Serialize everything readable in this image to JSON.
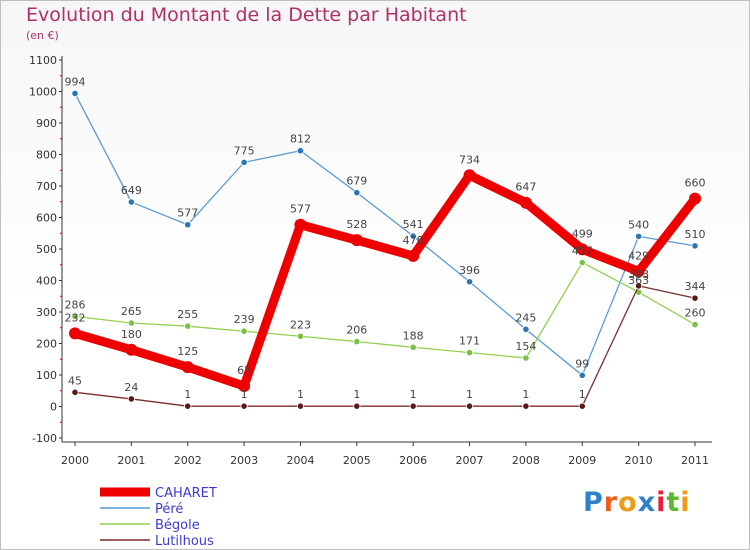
{
  "title": "Evolution du Montant de la Dette par Habitant",
  "subtitle": "(en €)",
  "logo": {
    "text": "Proxiti",
    "letter_colors": [
      "#2c83c9",
      "#e85e1a",
      "#ec9b1b",
      "#2c83c9",
      "#e81e3b",
      "#5cb82e",
      "#ec9b1b"
    ]
  },
  "chart_data": {
    "type": "line",
    "x": [
      "2000",
      "2001",
      "2002",
      "2003",
      "2004",
      "2005",
      "2006",
      "2007",
      "2008",
      "2009",
      "2010",
      "2011"
    ],
    "ylim": [
      -100,
      1100
    ],
    "yticks": [
      -100,
      0,
      100,
      200,
      300,
      400,
      500,
      600,
      700,
      800,
      900,
      1000,
      1100
    ],
    "grid": false,
    "legend_position": "bottom-left",
    "series": [
      {
        "name": "CAHARET",
        "color": "#ee0000",
        "marker": "#ee0000",
        "values": [
          232,
          180,
          125,
          65,
          577,
          528,
          478,
          734,
          647,
          499,
          429,
          660
        ],
        "labels": [
          "232",
          "180",
          "125",
          "65",
          "577",
          "528",
          "478",
          "734",
          "647",
          "499",
          "429",
          "660"
        ]
      },
      {
        "name": "Péré",
        "color": "#5b9bd5",
        "marker": "#2e75b6",
        "values": [
          994,
          649,
          577,
          775,
          812,
          679,
          541,
          396,
          245,
          99,
          540,
          510
        ],
        "labels": [
          "994",
          "649",
          "577",
          "775",
          "812",
          "679",
          "541",
          "396",
          "245",
          "99",
          "540",
          "510"
        ]
      },
      {
        "name": "Bégole",
        "color": "#92d050",
        "marker": "#7ac143",
        "values": [
          286,
          265,
          255,
          239,
          223,
          206,
          188,
          171,
          154,
          457,
          363,
          260
        ],
        "labels": [
          "286",
          "265",
          "255",
          "239",
          "223",
          "206",
          "188",
          "171",
          "154",
          "457",
          "363",
          "260"
        ]
      },
      {
        "name": "Lutilhous",
        "color": "#7b2c2c",
        "marker": "#5a1a1a",
        "values": [
          45,
          24,
          1,
          1,
          1,
          1,
          1,
          1,
          1,
          1,
          383,
          344
        ],
        "labels": [
          "45",
          "24",
          "1",
          "1",
          "1",
          "1",
          "1",
          "1",
          "1",
          "1",
          "383",
          "344"
        ]
      }
    ]
  }
}
